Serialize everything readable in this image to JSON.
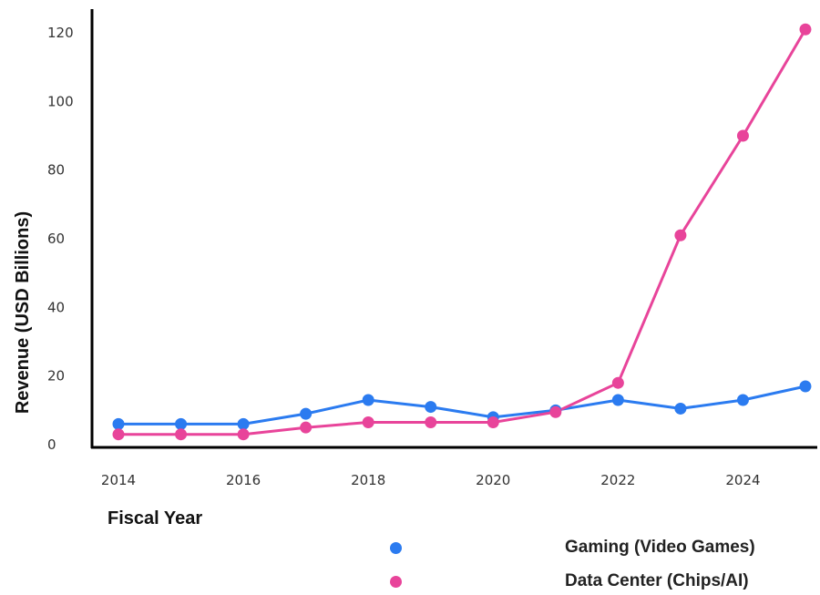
{
  "chart_data": {
    "type": "line",
    "x": [
      2014,
      2015,
      2016,
      2017,
      2018,
      2019,
      2020,
      2021,
      2022,
      2023,
      2024,
      2025
    ],
    "series": [
      {
        "name": "Gaming (Video Games)",
        "color": "#2b7bf0",
        "values": [
          6,
          6,
          6,
          9,
          13,
          11,
          8,
          10,
          13,
          10.5,
          13,
          17
        ]
      },
      {
        "name": "Data Center (Chips/AI)",
        "color": "#e8449a",
        "values": [
          3,
          3,
          3,
          5,
          6.5,
          6.5,
          6.5,
          9.5,
          18,
          61,
          90,
          121
        ]
      }
    ],
    "xticks": [
      "2014",
      "2016",
      "2018",
      "2020",
      "2022",
      "2024"
    ],
    "yticks": [
      "0",
      "20",
      "40",
      "60",
      "80",
      "100",
      "120"
    ],
    "xlabel": "Fiscal Year",
    "ylabel": "Revenue (USD Billions)",
    "title": "",
    "xlim": [
      2014,
      2025
    ],
    "ylim": [
      0,
      123
    ],
    "grid": false,
    "legend_position": "bottom-right"
  }
}
